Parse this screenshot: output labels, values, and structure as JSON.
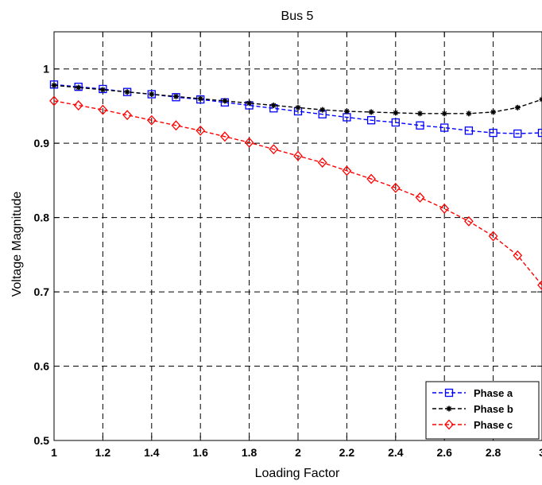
{
  "chart_data": {
    "type": "line",
    "title": "Bus 5",
    "xlabel": "Loading Factor",
    "ylabel": "Voltage Magnitude",
    "xlim": [
      1,
      3
    ],
    "ylim": [
      0.5,
      1.05
    ],
    "x_ticks": [
      1,
      1.2,
      1.4,
      1.6,
      1.8,
      2,
      2.2,
      2.4,
      2.6,
      2.8,
      3
    ],
    "x_tick_labels": [
      "1",
      "1.2",
      "1.4",
      "1.6",
      "1.8",
      "2",
      "2.2",
      "2.4",
      "2.6",
      "2.8",
      "3"
    ],
    "y_ticks": [
      0.5,
      0.6,
      0.7,
      0.8,
      0.9,
      1
    ],
    "y_tick_labels": [
      "0.5",
      "0.6",
      "0.7",
      "0.8",
      "0.9",
      "1"
    ],
    "grid": true,
    "legend_position": "bottom-right",
    "x": [
      1,
      1.1,
      1.2,
      1.3,
      1.4,
      1.5,
      1.6,
      1.7,
      1.8,
      1.9,
      2,
      2.1,
      2.2,
      2.3,
      2.4,
      2.5,
      2.6,
      2.7,
      2.8,
      2.9,
      3
    ],
    "series": [
      {
        "name": "Phase a",
        "color": "#0000ff",
        "marker": "square",
        "values": [
          0.979,
          0.976,
          0.973,
          0.969,
          0.966,
          0.962,
          0.959,
          0.955,
          0.951,
          0.947,
          0.943,
          0.939,
          0.935,
          0.931,
          0.928,
          0.924,
          0.921,
          0.917,
          0.914,
          0.913,
          0.914
        ]
      },
      {
        "name": "Phase b",
        "color": "#000000",
        "marker": "star",
        "values": [
          0.978,
          0.975,
          0.972,
          0.969,
          0.966,
          0.963,
          0.96,
          0.957,
          0.954,
          0.951,
          0.948,
          0.945,
          0.943,
          0.942,
          0.941,
          0.94,
          0.94,
          0.94,
          0.942,
          0.948,
          0.959
        ]
      },
      {
        "name": "Phase c",
        "color": "#ff0000",
        "marker": "diamond",
        "values": [
          0.957,
          0.951,
          0.945,
          0.938,
          0.931,
          0.924,
          0.917,
          0.909,
          0.901,
          0.892,
          0.883,
          0.874,
          0.863,
          0.852,
          0.84,
          0.827,
          0.812,
          0.795,
          0.775,
          0.749,
          0.709
        ]
      }
    ]
  }
}
